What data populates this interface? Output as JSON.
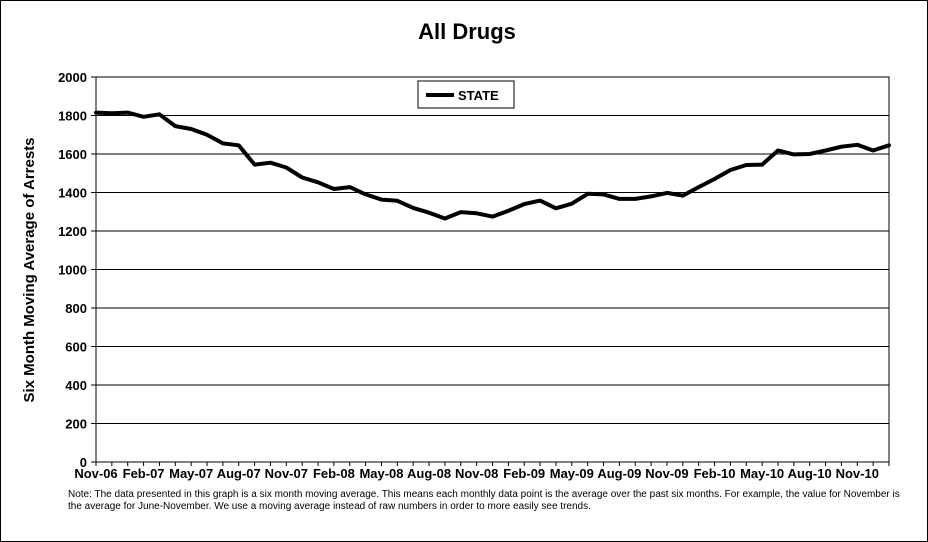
{
  "chart_data": {
    "type": "line",
    "title": "All Drugs",
    "ylabel": "Six Month Moving Average of Arrests",
    "xlabel": "",
    "ylim": [
      0,
      2000
    ],
    "yticks": [
      0,
      200,
      400,
      600,
      800,
      1000,
      1200,
      1400,
      1600,
      1800,
      2000
    ],
    "grid": true,
    "legend_position": "top-center",
    "xtick_labels": [
      "Nov-06",
      "Feb-07",
      "May-07",
      "Aug-07",
      "Nov-07",
      "Feb-08",
      "May-08",
      "Aug-08",
      "Nov-08",
      "Feb-09",
      "May-09",
      "Aug-09",
      "Nov-09",
      "Feb-10",
      "May-10",
      "Aug-10",
      "Nov-10"
    ],
    "x": [
      "Nov-06",
      "Dec-06",
      "Jan-07",
      "Feb-07",
      "Mar-07",
      "Apr-07",
      "May-07",
      "Jun-07",
      "Jul-07",
      "Aug-07",
      "Sep-07",
      "Oct-07",
      "Nov-07",
      "Dec-07",
      "Jan-08",
      "Feb-08",
      "Mar-08",
      "Apr-08",
      "May-08",
      "Jun-08",
      "Jul-08",
      "Aug-08",
      "Sep-08",
      "Oct-08",
      "Nov-08",
      "Dec-08",
      "Jan-09",
      "Feb-09",
      "Mar-09",
      "Apr-09",
      "May-09",
      "Jun-09",
      "Jul-09",
      "Aug-09",
      "Sep-09",
      "Oct-09",
      "Nov-09",
      "Dec-09",
      "Jan-10",
      "Feb-10",
      "Mar-10",
      "Apr-10",
      "May-10",
      "Jun-10",
      "Jul-10",
      "Aug-10",
      "Sep-10",
      "Oct-10",
      "Nov-10",
      "Dec-10",
      "Jan-11"
    ],
    "series": [
      {
        "name": "STATE",
        "color": "#000000",
        "values": [
          1815,
          1812,
          1815,
          1793,
          1806,
          1745,
          1730,
          1700,
          1655,
          1645,
          1545,
          1555,
          1530,
          1478,
          1453,
          1418,
          1428,
          1390,
          1363,
          1357,
          1320,
          1295,
          1265,
          1298,
          1292,
          1275,
          1305,
          1340,
          1358,
          1318,
          1342,
          1393,
          1390,
          1367,
          1367,
          1380,
          1398,
          1384,
          1428,
          1470,
          1517,
          1543,
          1545,
          1618,
          1598,
          1600,
          1618,
          1638,
          1648,
          1618,
          1645
        ]
      }
    ]
  },
  "note": "Note: The data presented in this graph is a six month moving average. This means each monthly data point is the average over the past six months. For example, the value for November is the average for June-November. We use a moving average instead of raw numbers in order to more easily see trends."
}
